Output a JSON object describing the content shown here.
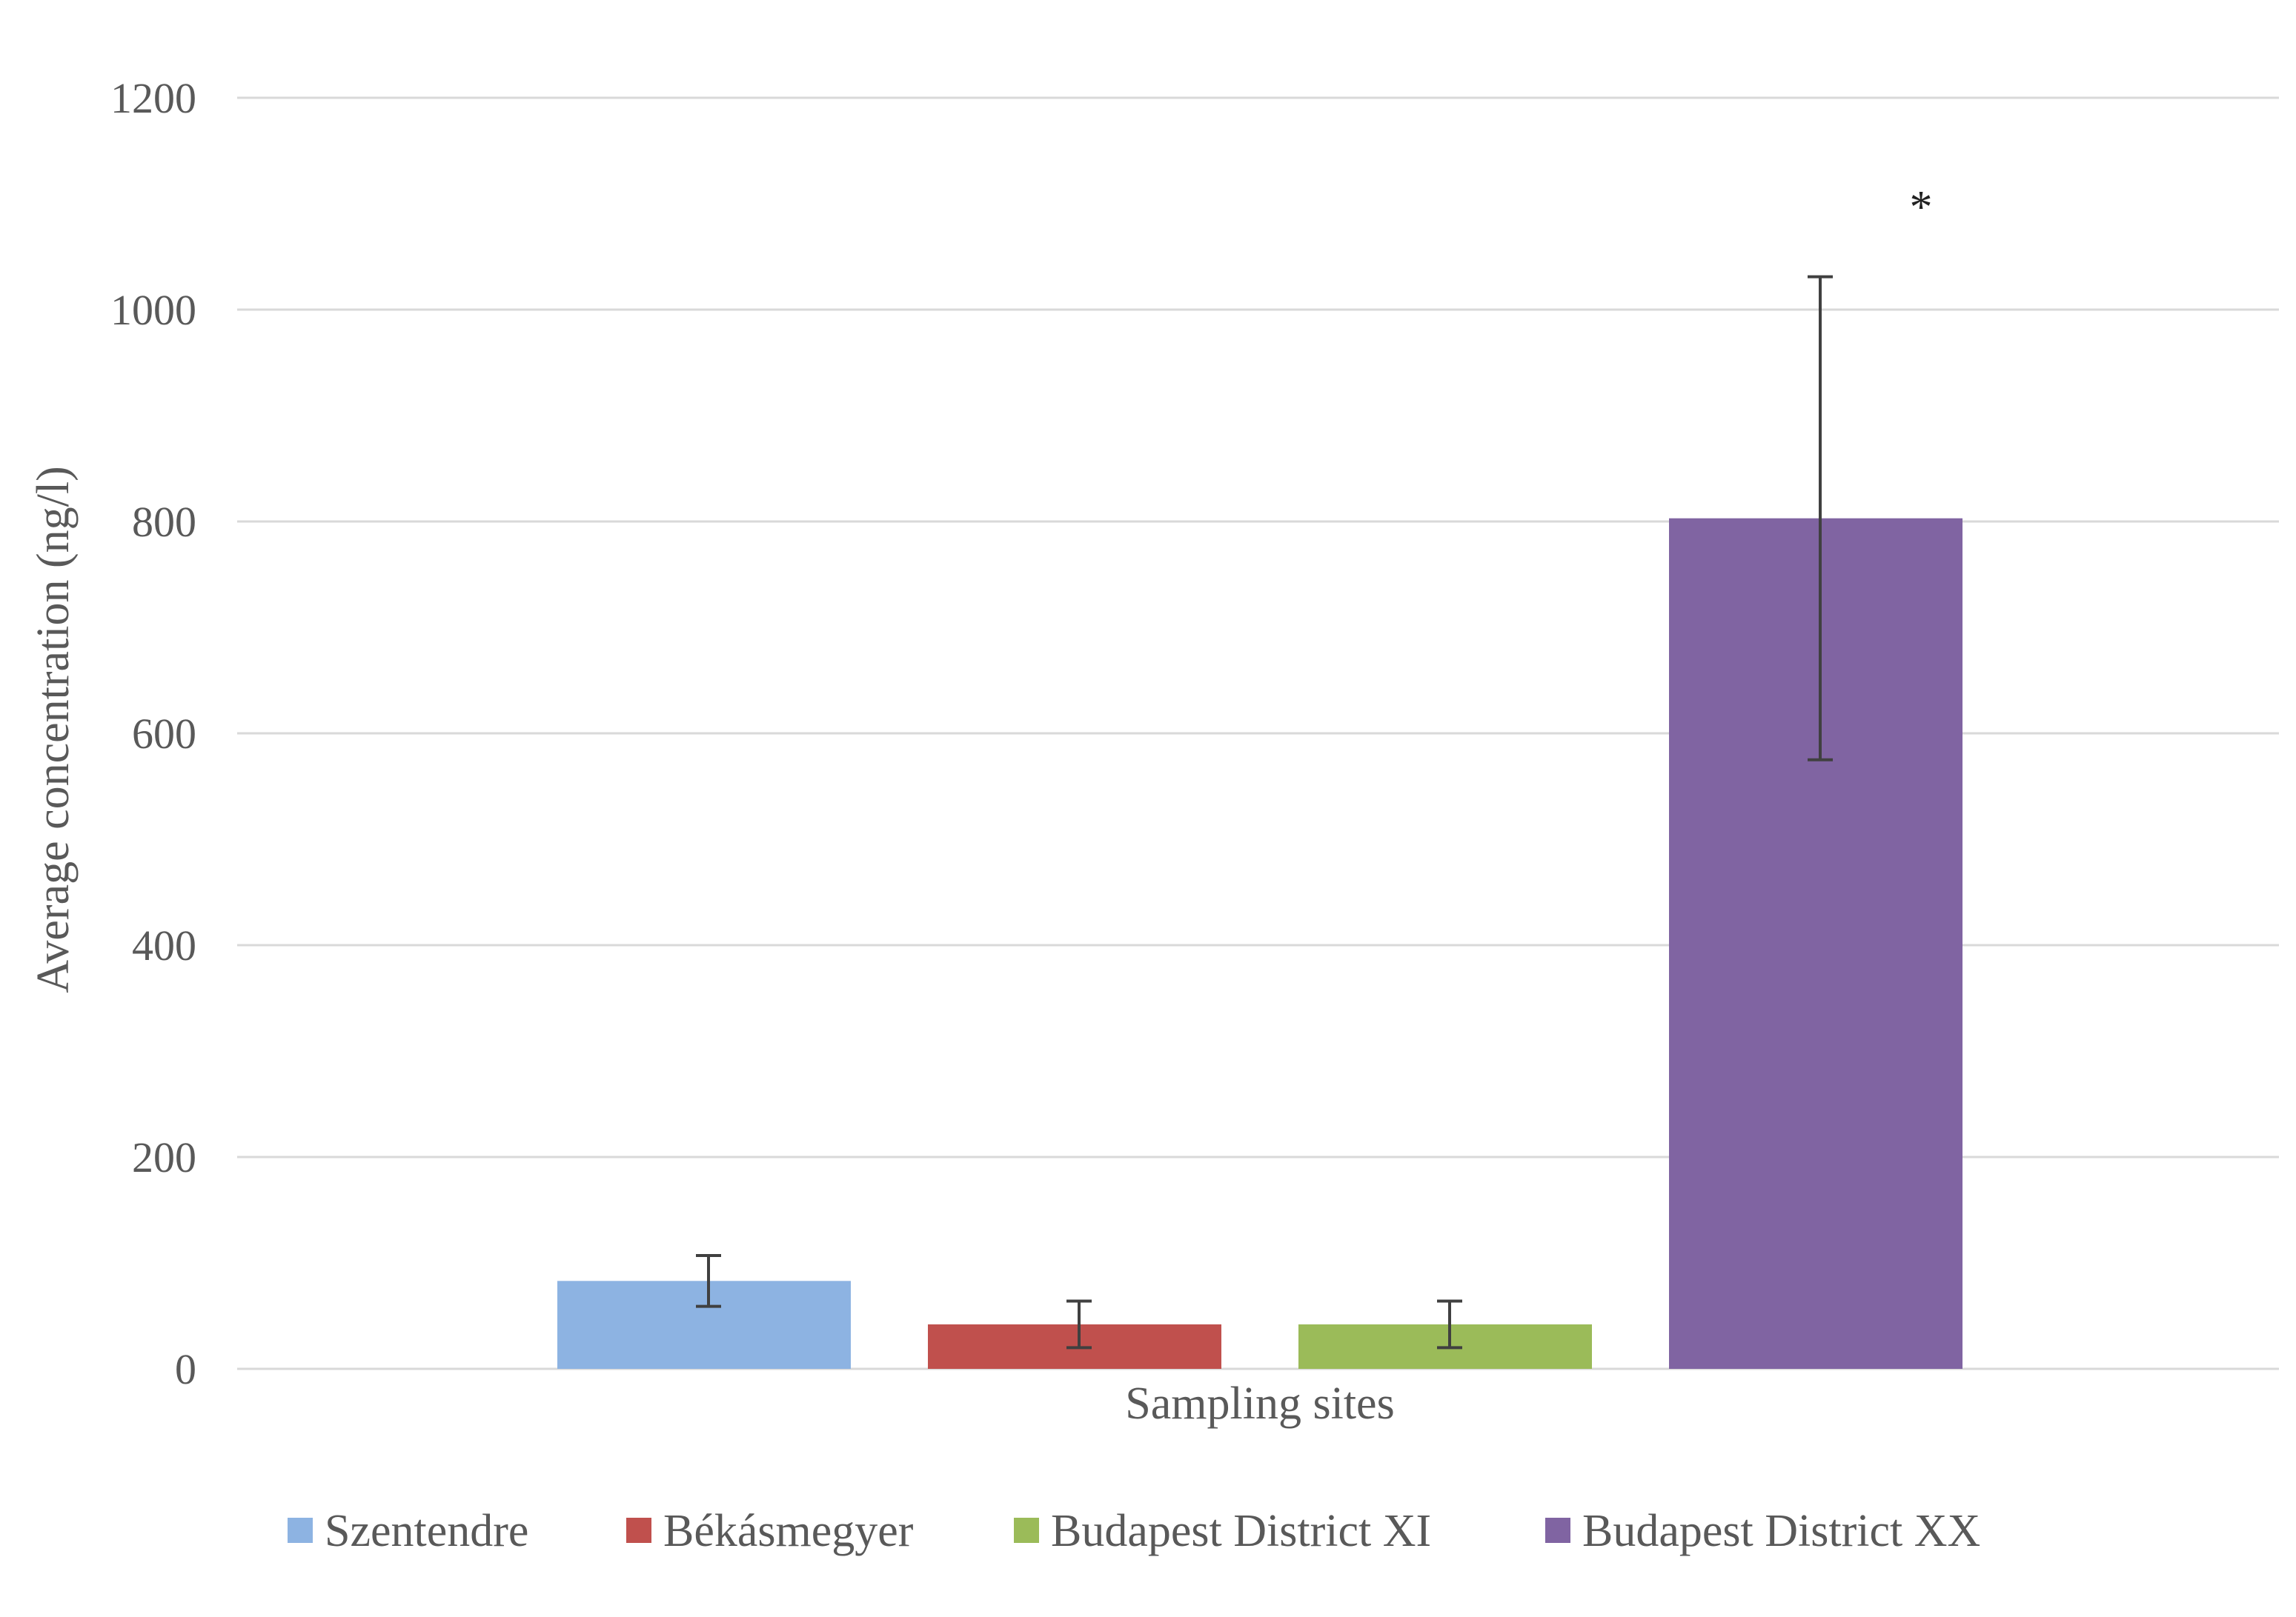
{
  "chart_data": {
    "type": "bar",
    "xlabel": "Sampling sites",
    "ylabel": "Average concentration (ng/l)",
    "ylim": [
      0,
      1200
    ],
    "yticks": [
      0,
      200,
      400,
      600,
      800,
      1000,
      1200
    ],
    "grid": true,
    "legend_position": "bottom",
    "series": [
      {
        "name": "Szentendre",
        "value": 83,
        "error": 24,
        "color": "#8db3e2"
      },
      {
        "name": "Békásmegyer",
        "value": 42,
        "error": 22,
        "color": "#c0504d"
      },
      {
        "name": "Budapest District XI",
        "value": 42,
        "error": 22,
        "color": "#9bbb59"
      },
      {
        "name": "Budapest District XX",
        "value": 803,
        "error": 228,
        "color": "#8064a2"
      }
    ],
    "annotations": [
      {
        "text": "*",
        "series": "Budapest District XX"
      }
    ]
  }
}
